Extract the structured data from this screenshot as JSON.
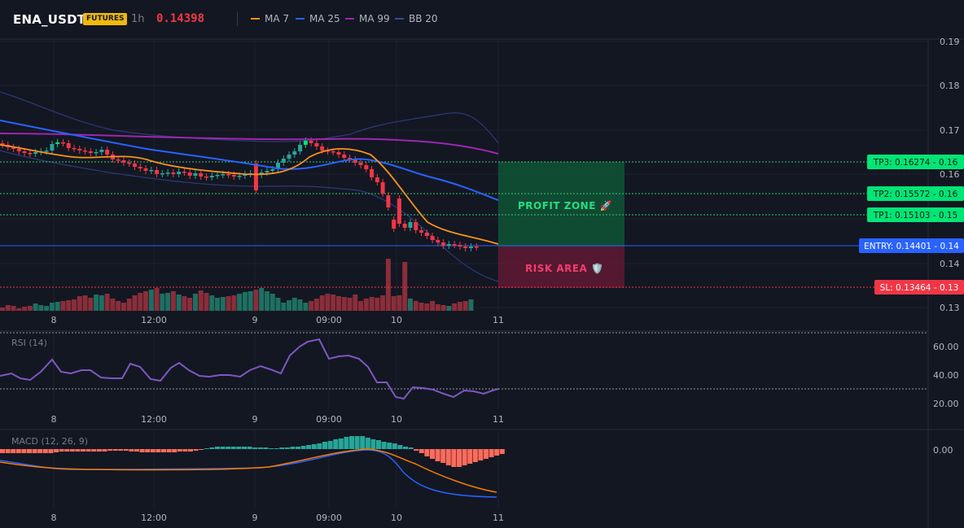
{
  "header": {
    "symbol": "ENA_USDT",
    "badge": "FUTURES",
    "timeframe": "1h",
    "price": "0.14398",
    "indicators": [
      {
        "label": "MA 7",
        "color": "#f7931a"
      },
      {
        "label": "MA 25",
        "color": "#2962ff"
      },
      {
        "label": "MA 99",
        "color": "#9c27b0"
      },
      {
        "label": "BB 20",
        "color": "#3a4a9a"
      }
    ]
  },
  "price_axis": {
    "ticks": [
      "0.19",
      "0.18",
      "0.17",
      "0.16",
      "0.15",
      "0.14",
      "0.13"
    ]
  },
  "time_axis": {
    "ticks": [
      "8",
      "12:00",
      "9",
      "09:00",
      "10",
      "11"
    ]
  },
  "levels": [
    {
      "label": "TP3: 0.16274 - 0.16",
      "color": "#00e676",
      "text_color": "#0b1a10"
    },
    {
      "label": "TP2: 0.15572 - 0.16",
      "color": "#00e676",
      "text_color": "#0b1a10"
    },
    {
      "label": "TP1: 0.15103 - 0.15",
      "color": "#00e676",
      "text_color": "#0b1a10"
    },
    {
      "label": "ENTRY: 0.14401 - 0.14",
      "color": "#2962ff",
      "text_color": "#ffffff"
    },
    {
      "label": "SL: 0.13464 - 0.13",
      "color": "#f23645",
      "text_color": "#ffffff"
    }
  ],
  "zones": {
    "profit": "PROFIT ZONE 🚀",
    "risk": "RISK AREA 🛡️"
  },
  "rsi": {
    "title": "RSI (14)",
    "ticks": [
      "60.00",
      "40.00",
      "20.00"
    ]
  },
  "macd": {
    "title": "MACD (12, 26, 9)",
    "ticks": [
      "0.00"
    ]
  },
  "colors": {
    "up": "#26a69a",
    "up_bright": "#00e676",
    "down": "#f23645",
    "rsi": "#7e57c2",
    "macd": "#2962ff",
    "signal": "#f57c00"
  }
}
